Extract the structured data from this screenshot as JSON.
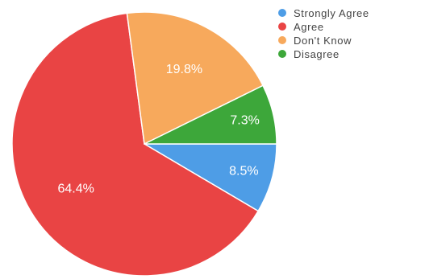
{
  "chart_data": {
    "type": "pie",
    "title": "",
    "legend_position": "top-right",
    "slices": [
      {
        "name": "Strongly Agree",
        "value": 8.5,
        "label": "8.5%",
        "color": "#4e9de6"
      },
      {
        "name": "Agree",
        "value": 64.4,
        "label": "64.4%",
        "color": "#e94444"
      },
      {
        "name": "Don't Know",
        "value": 19.8,
        "label": "19.8%",
        "color": "#f7a95c"
      },
      {
        "name": "Disagree",
        "value": 7.3,
        "label": "7.3%",
        "color": "#3da73a"
      }
    ]
  }
}
